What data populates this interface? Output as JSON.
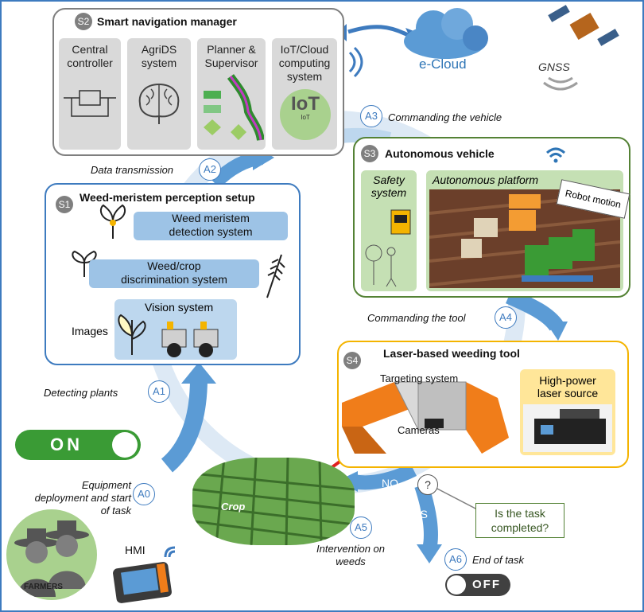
{
  "s2": {
    "badge": "S2",
    "title": "Smart navigation manager",
    "tiles": [
      {
        "line1": "Central",
        "line2": "controller"
      },
      {
        "line1": "AgriDS",
        "line2": "system"
      },
      {
        "line1": "Planner &",
        "line2": "Supervisor"
      },
      {
        "line1": "IoT/Cloud",
        "line2": "computing",
        "line3": "system"
      }
    ],
    "iot_text": "IoT",
    "iot_small": "IoT"
  },
  "cloud": {
    "label": "e-Cloud"
  },
  "gnss": {
    "label": "GNSS"
  },
  "s1": {
    "badge": "S1",
    "title": "Weed-meristem perception setup",
    "pill1": {
      "line1": "Weed meristem",
      "line2": "detection system"
    },
    "pill2": {
      "line1": "Weed/crop",
      "line2": "discrimination system"
    },
    "pill3": "Vision system",
    "images_label": "Images"
  },
  "s3": {
    "badge": "S3",
    "title": "Autonomous vehicle",
    "safety": {
      "line1": "Safety",
      "line2": "system"
    },
    "platform": "Autonomous platform",
    "robot_motion": "Robot motion"
  },
  "s4": {
    "badge": "S4",
    "title": "Laser-based weeding tool",
    "targeting": "Targeting system",
    "cameras": "Cameras",
    "laser": {
      "line1": "High-power",
      "line2": "laser source"
    }
  },
  "actions": {
    "a0": {
      "id": "A0",
      "line1": "Equipment",
      "line2": "deployment and start",
      "line3": "of task"
    },
    "a1": {
      "id": "A1",
      "text": "Detecting plants"
    },
    "a2": {
      "id": "A2",
      "text": "Data transmission"
    },
    "a3": {
      "id": "A3",
      "text": "Commanding the vehicle"
    },
    "a4": {
      "id": "A4",
      "text": "Commanding the tool"
    },
    "a5": {
      "id": "A5",
      "line1": "Intervention on",
      "line2": "weeds"
    },
    "a6": {
      "id": "A6",
      "text": "End of task"
    }
  },
  "decision": {
    "question": "?",
    "line1": "Is the task",
    "line2": "completed?",
    "no": "NO",
    "yes": "YES"
  },
  "switches": {
    "on": "ON",
    "off": "OFF"
  },
  "crop_label": "Crop",
  "farmers_label": "FARMERS",
  "hmi_label": "HMI",
  "colors": {
    "arrow_blue": "#5b9bd5",
    "box_blue": "#3e7bbf",
    "box_green": "#548235",
    "box_gray": "#7f7f7f",
    "box_orange": "#f4b400",
    "laser_red": "#e02020",
    "switch_green": "#3a9b35"
  }
}
